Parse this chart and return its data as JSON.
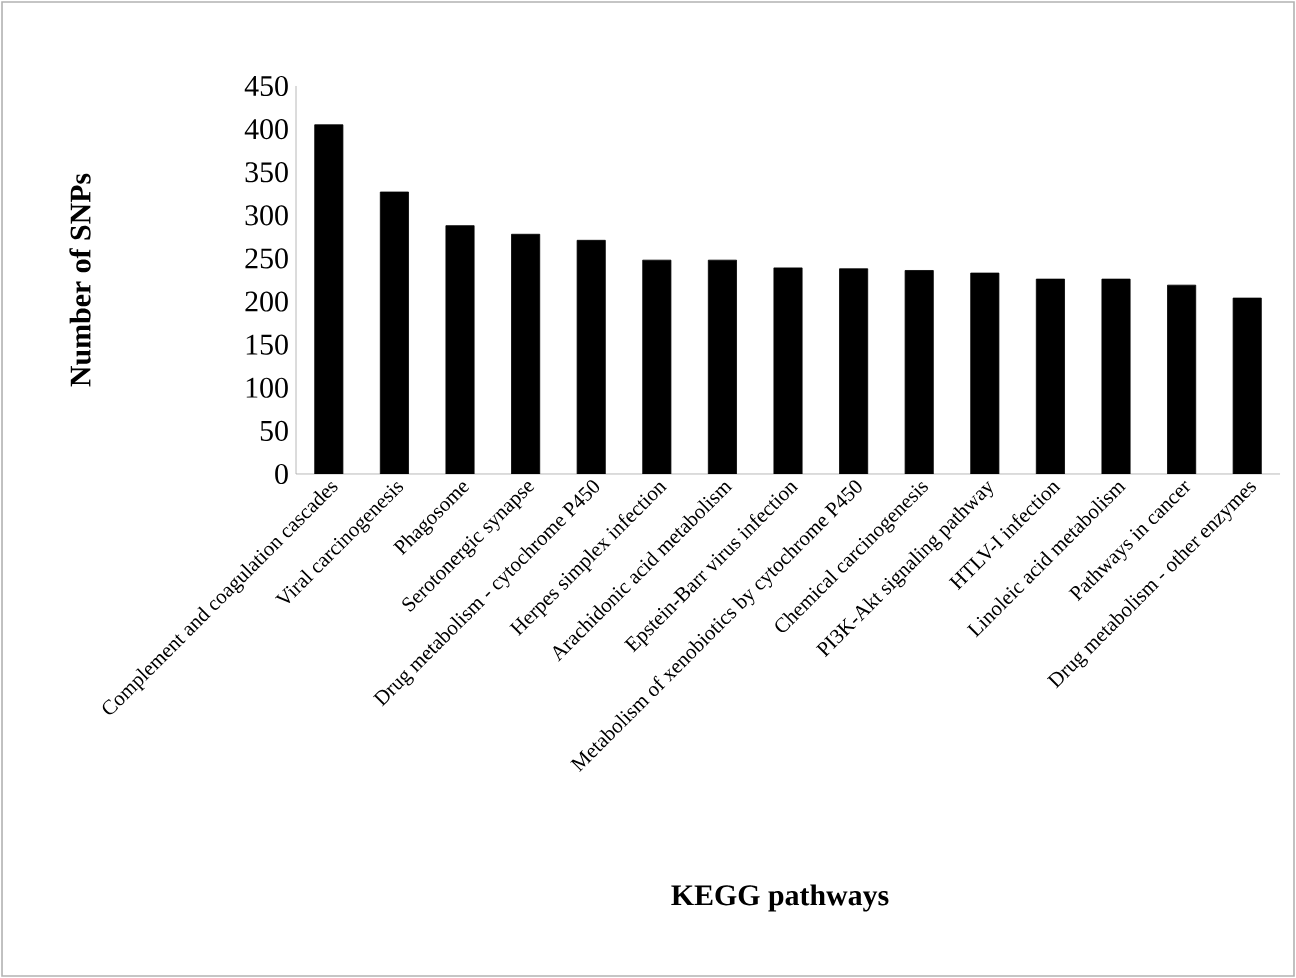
{
  "chart_data": {
    "type": "bar",
    "xlabel": "KEGG pathways",
    "ylabel": "Number of SNPs",
    "categories": [
      "Complement and coagulation cascades",
      "Viral carcinogenesis",
      "Phagosome",
      "Serotonergic synapse",
      "Drug metabolism - cytochrome P450",
      "Herpes simplex infection",
      "Arachidonic acid metabolism",
      "Epstein-Barr virus infection",
      "Metabolism of xenobiotics by cytochrome P450",
      "Chemical carcinogenesis",
      "PI3K-Akt signaling pathway",
      "HTLV-I infection",
      "Linoleic acid metabolism",
      "Pathways in cancer",
      "Drug metabolism - other enzymes"
    ],
    "values": [
      405,
      327,
      288,
      278,
      271,
      248,
      248,
      239,
      238,
      236,
      233,
      226,
      226,
      219,
      204
    ],
    "color": "#000000",
    "ylim": [
      0,
      450
    ],
    "yticks": [
      0,
      50,
      100,
      150,
      200,
      250,
      300,
      350,
      400,
      450
    ],
    "grid": false
  }
}
